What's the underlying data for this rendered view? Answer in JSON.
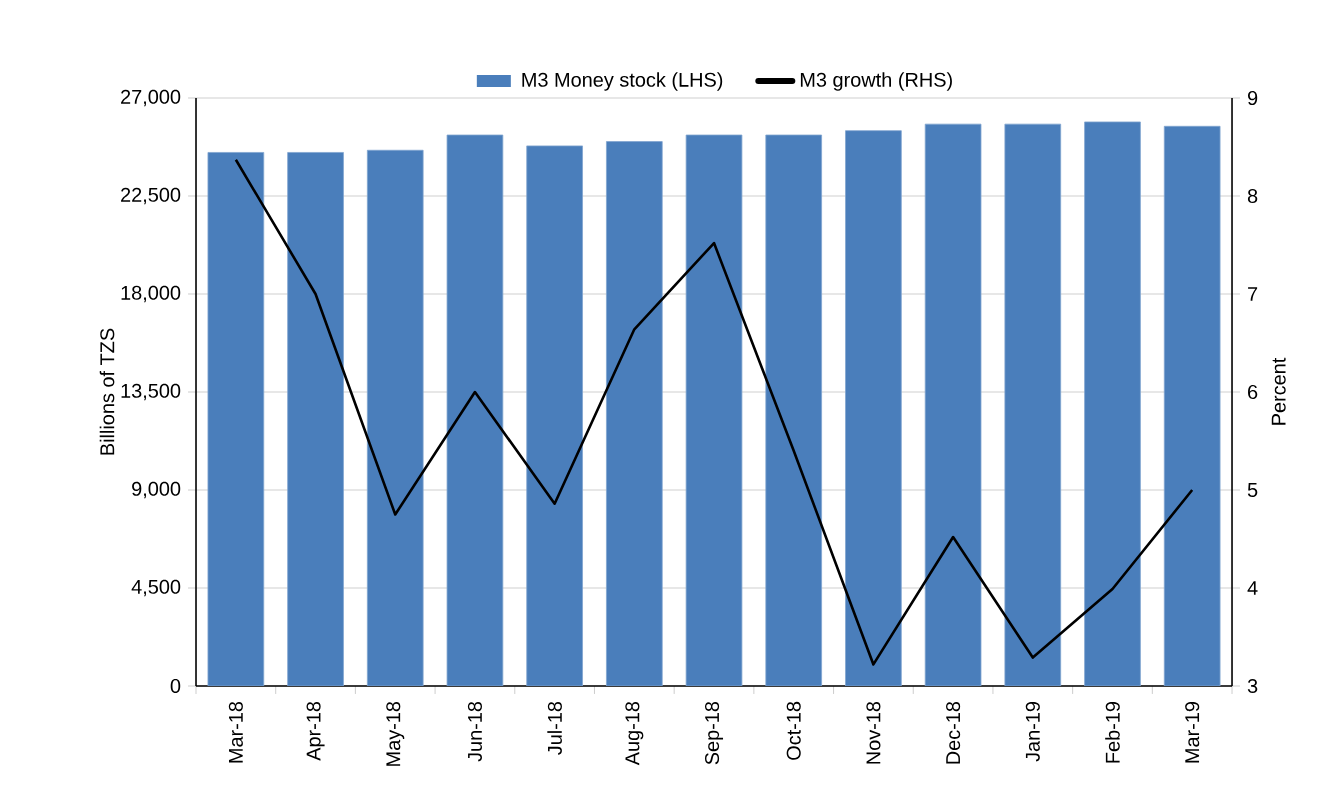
{
  "chart_data": {
    "type": "bar",
    "ylabel": "Billions of TZS",
    "y2label": "Percent",
    "categories": [
      "Mar-18",
      "Apr-18",
      "May-18",
      "Jun-18",
      "Jul-18",
      "Aug-18",
      "Sep-18",
      "Oct-18",
      "Nov-18",
      "Dec-18",
      "Jan-19",
      "Feb-19",
      "Mar-19"
    ],
    "series": [
      {
        "name": "M3 Money stock (LHS)",
        "color": "#4a7ebb",
        "values": [
          24500,
          24500,
          24600,
          25300,
          24800,
          25000,
          25300,
          25300,
          25500,
          25800,
          25800,
          25900,
          25700
        ]
      },
      {
        "name": "M3 growth (RHS)",
        "type": "line",
        "axis": "y2",
        "color": "#000000",
        "values": [
          8.37,
          7.0,
          4.75,
          6.0,
          4.86,
          6.64,
          7.52,
          5.4,
          3.22,
          4.52,
          3.29,
          3.99,
          5.0
        ]
      }
    ],
    "ylim": [
      0,
      27000
    ],
    "yticks": [
      0,
      {
        "value": 4500,
        "label": "4,500"
      },
      {
        "value": 9000,
        "label": "9,000"
      },
      {
        "value": 13500,
        "label": "13,500"
      },
      {
        "value": 18000,
        "label": "18,000"
      },
      {
        "value": 22500,
        "label": "22,500"
      },
      {
        "value": 27000,
        "label": "27,000"
      }
    ],
    "y2lim": [
      3,
      9
    ],
    "y2ticks": [
      3,
      4,
      5,
      6,
      7,
      8,
      9
    ],
    "grid": "y",
    "legend": "top",
    "marker": "none",
    "line_style": "solid"
  }
}
